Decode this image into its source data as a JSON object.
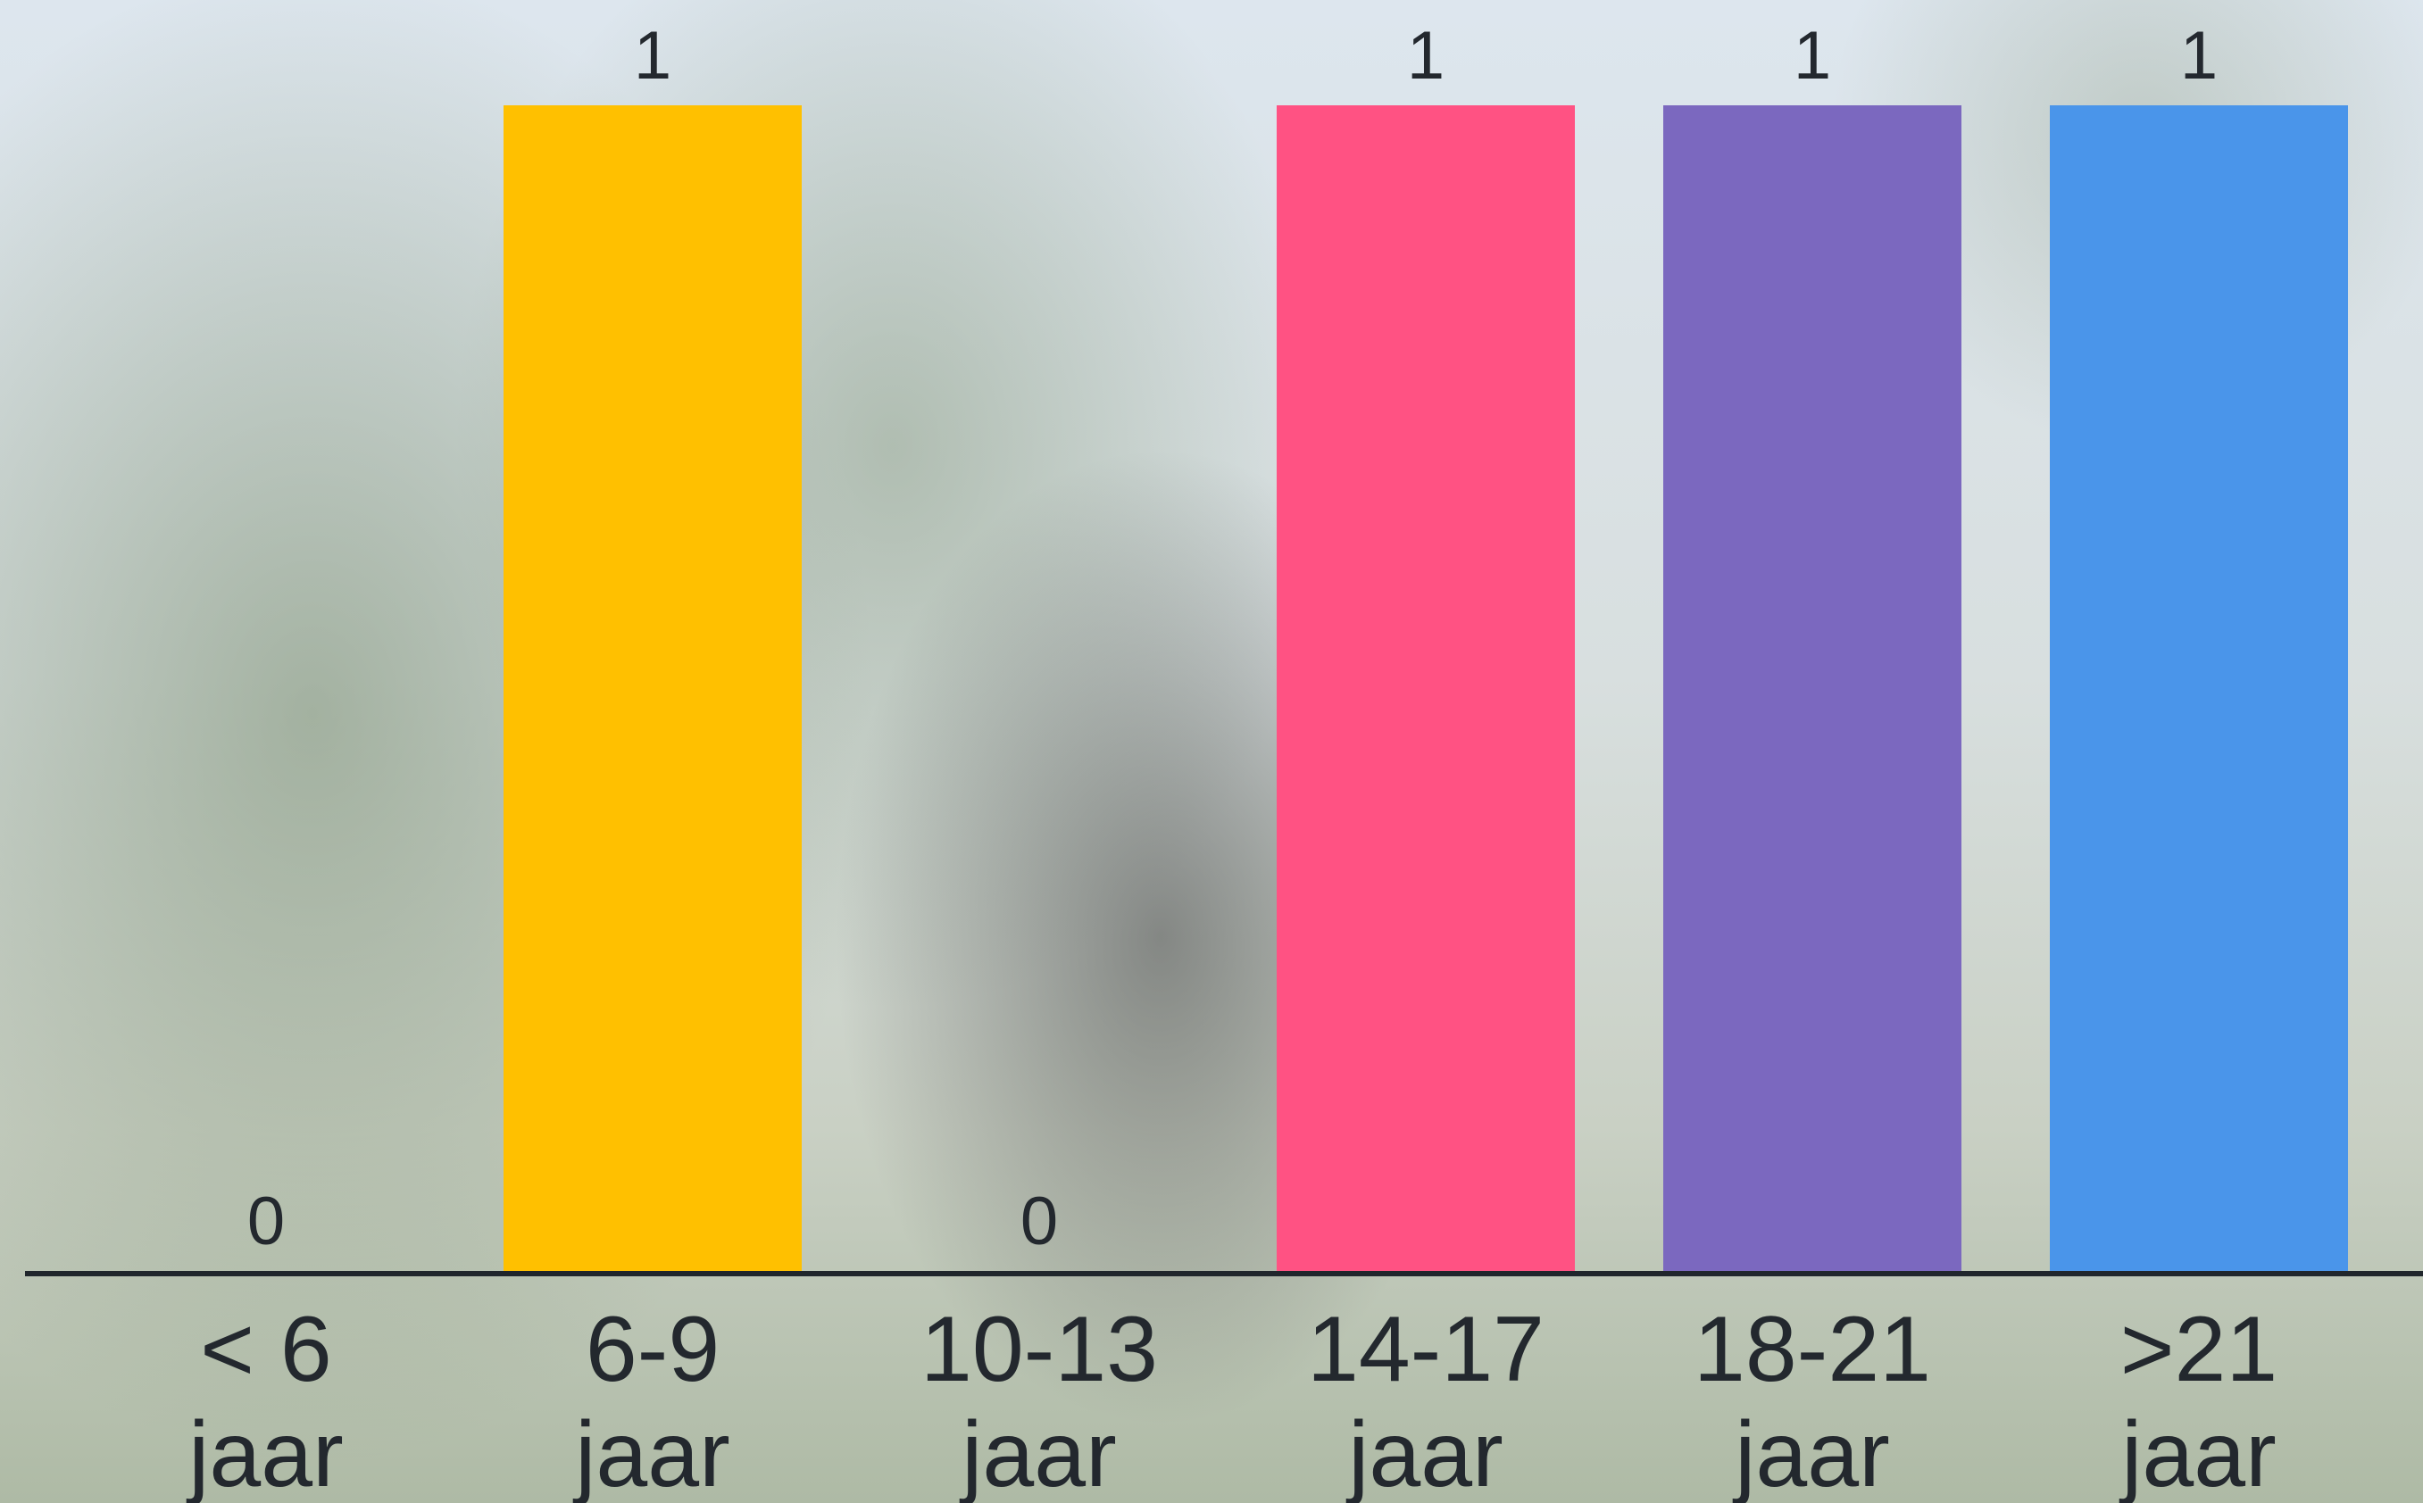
{
  "chart_data": {
    "type": "bar",
    "categories": [
      [
        "< 6",
        "jaar"
      ],
      [
        "6-9",
        "jaar"
      ],
      [
        "10-13",
        "jaar"
      ],
      [
        "14-17",
        "jaar"
      ],
      [
        "18-21",
        "jaar"
      ],
      [
        ">21",
        "jaar"
      ]
    ],
    "values": [
      0,
      1,
      0,
      1,
      1,
      1
    ],
    "data_labels": [
      "0",
      "1",
      "0",
      "1",
      "1",
      "1"
    ],
    "bar_colors": [
      "#FFC000",
      "#FFC000",
      "#FFC000",
      "#FF5283",
      "#7B68BF",
      "#4A95EA"
    ],
    "ylim": [
      0,
      1
    ],
    "grid": false,
    "legend": "none"
  }
}
